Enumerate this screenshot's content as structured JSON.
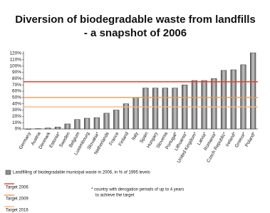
{
  "chart_data": {
    "type": "bar",
    "title": [
      "Diversion of biodegradable waste from landfills",
      "- a snapshot of 2006"
    ],
    "categories": [
      "Germany",
      "Austria",
      "Denmark",
      "Estonia*",
      "Sweden",
      "Belgium",
      "Luxembourg",
      "Slovakia*",
      "Netherlands",
      "France",
      "Finland",
      "Italy",
      "Spain",
      "Hungary",
      "Slovenia",
      "Portugal*",
      "Lithuania*",
      "United Kingdom*",
      "Latvia*",
      "Romania*",
      "Czech Republic*",
      "Ireland*",
      "Greece*",
      "Poland*"
    ],
    "series": [
      {
        "name": "Landfilling of biodegradable municipal waste in 2006, in % of 1995 levels",
        "color": "#8c8c8c",
        "values": [
          0,
          0.5,
          1.5,
          3,
          8,
          15,
          17,
          18,
          25,
          30,
          40,
          50,
          65,
          65,
          65,
          65,
          70,
          77,
          77,
          80,
          93,
          94,
          102,
          121
        ]
      }
    ],
    "targets": [
      {
        "name": "Target 2006",
        "value": 75,
        "color": "#e8402a"
      },
      {
        "name": "Target 2009",
        "value": 50,
        "color": "#f29a4a"
      },
      {
        "name": "Target 2016",
        "value": 35,
        "color": "#f5b978"
      }
    ],
    "note": [
      "* country with derogation periods of up to 4 years",
      "to achieve the target"
    ],
    "ylim": [
      0,
      120
    ],
    "yticks": [
      {
        "value": 0,
        "label": "0%"
      },
      {
        "value": 10,
        "label": "10%"
      },
      {
        "value": 20,
        "label": "20%"
      },
      {
        "value": 30,
        "label": "30%"
      },
      {
        "value": 40,
        "label": "40%"
      },
      {
        "value": 50,
        "label": "50%"
      },
      {
        "value": 60,
        "label": "60%"
      },
      {
        "value": 70,
        "label": "70%"
      },
      {
        "value": 80,
        "label": "80%"
      },
      {
        "value": 90,
        "label": "90%"
      },
      {
        "value": 100,
        "label": "100%"
      },
      {
        "value": 110,
        "label": "110%"
      },
      {
        "value": 120,
        "label": "120%"
      }
    ],
    "grid": false
  }
}
